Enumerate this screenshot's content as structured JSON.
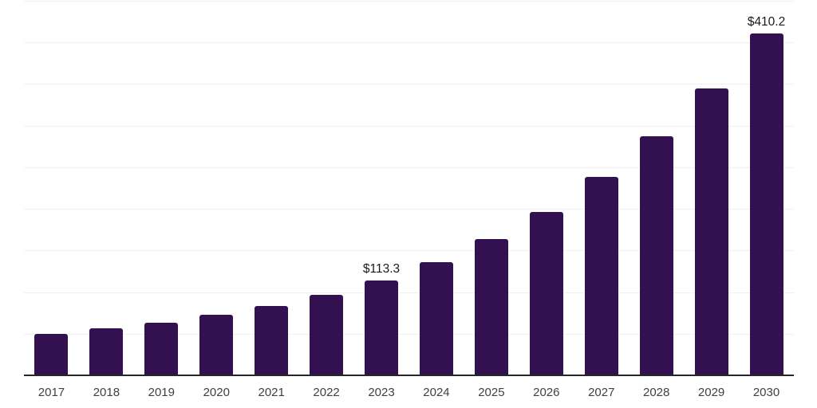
{
  "chart_data": {
    "type": "bar",
    "title": "",
    "xlabel": "",
    "ylabel": "",
    "categories": [
      "2017",
      "2018",
      "2019",
      "2020",
      "2021",
      "2022",
      "2023",
      "2024",
      "2025",
      "2026",
      "2027",
      "2028",
      "2029",
      "2030"
    ],
    "values": [
      49.0,
      55.2,
      62.2,
      71.6,
      82.4,
      96.0,
      113.3,
      135.0,
      163.0,
      195.5,
      237.5,
      286.5,
      343.5,
      410.2
    ],
    "data_labels": {
      "2023": "$113.3",
      "2030": "$410.2"
    },
    "ylim": [
      0,
      450
    ],
    "gridline_step": 50,
    "grid": "horizontal",
    "y_axis_tick_labels_visible": false,
    "legend": "none",
    "colors": {
      "bar": "#331150",
      "axis_line": "#262626",
      "gridline": "#f1f1f1",
      "x_tick_label": "#404040",
      "data_label": "#1a1a1a",
      "background": "#ffffff"
    }
  }
}
